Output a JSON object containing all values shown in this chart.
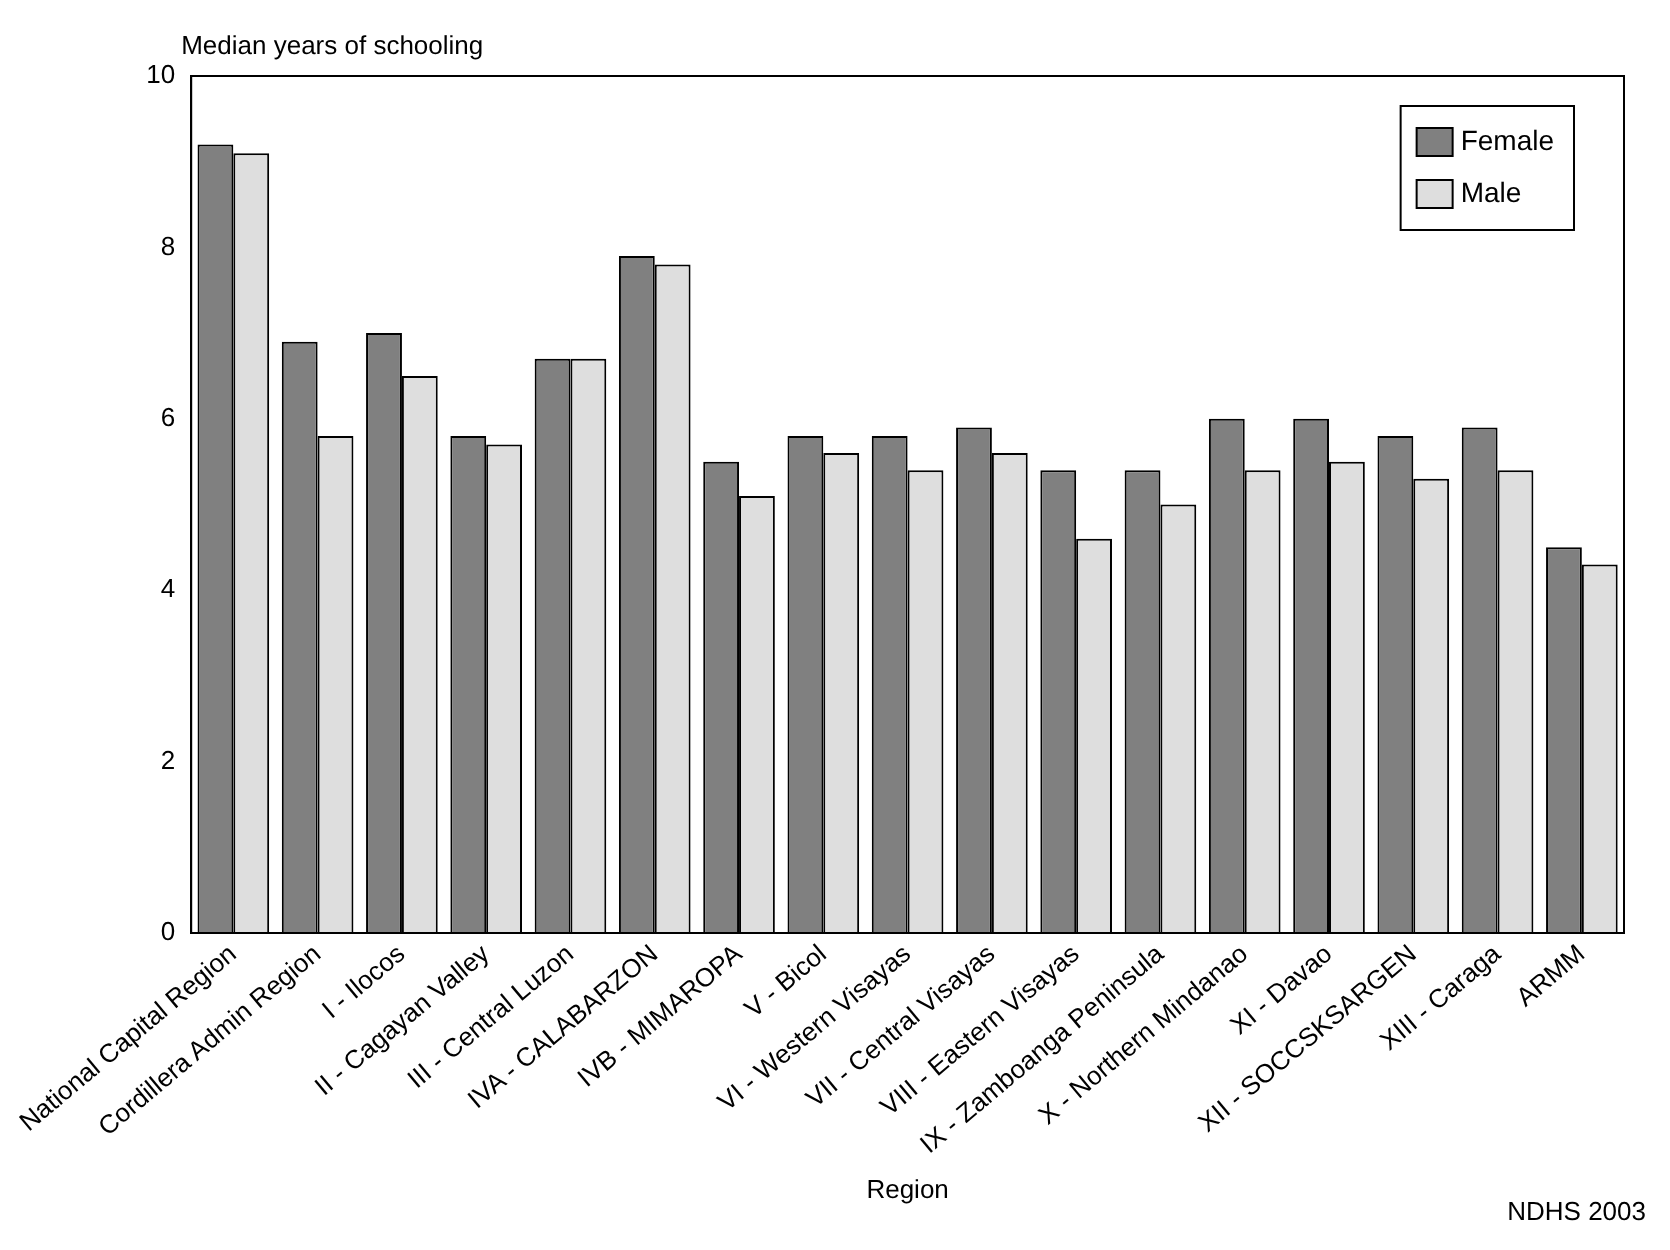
{
  "chart_data": {
    "type": "bar",
    "ylabel": "Median years of schooling",
    "xlabel": "Region",
    "annotations": [
      "NDHS 2003"
    ],
    "categories": [
      "National Capital Region",
      "Cordillera Admin Region",
      "I - Ilocos",
      "II - Cagayan Valley",
      "III - Central Luzon",
      "IVA - CALABARZON",
      "IVB - MIMAROPA",
      "V - Bicol",
      "VI - Western Visayas",
      "VII - Central Visayas",
      "VIII - Eastern Visayas",
      "IX - Zamboanga Peninsula",
      "X - Northern Mindanao",
      "XI - Davao",
      "XII - SOCCSKSARGEN",
      "XIII - Caraga",
      "ARMM"
    ],
    "series": [
      {
        "name": "Female",
        "color": "#808080",
        "values": [
          9.2,
          6.9,
          7.0,
          5.8,
          6.7,
          7.9,
          5.5,
          5.8,
          5.8,
          5.9,
          5.4,
          5.4,
          6.0,
          6.0,
          5.8,
          5.9,
          4.5
        ]
      },
      {
        "name": "Male",
        "color": "#dedede",
        "values": [
          9.1,
          5.8,
          6.5,
          5.7,
          6.7,
          7.8,
          5.1,
          5.6,
          5.4,
          5.6,
          4.6,
          5.0,
          5.4,
          5.5,
          5.3,
          5.4,
          4.3
        ]
      }
    ],
    "ylim": [
      0,
      10
    ],
    "yticks": [
      0,
      2,
      4,
      6,
      8,
      10
    ],
    "grid": false,
    "legend": "top right"
  }
}
